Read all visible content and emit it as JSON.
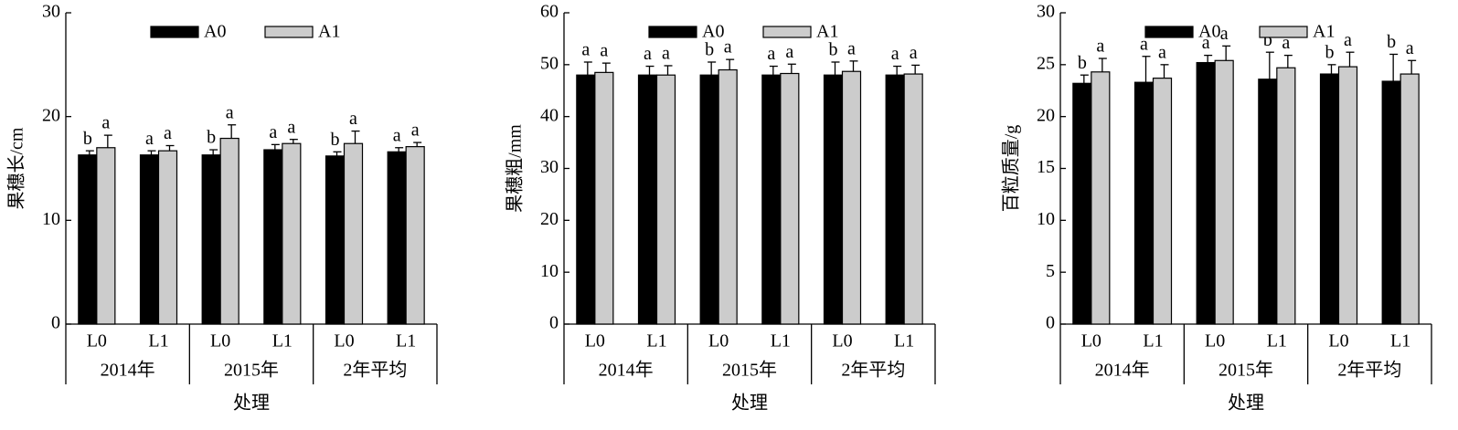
{
  "chart_data": [
    {
      "type": "bar",
      "ylabel": "果穗长/cm",
      "xlabel": "处理",
      "categories": [
        "L0",
        "L1",
        "L0",
        "L1",
        "L0",
        "L1"
      ],
      "groups": [
        "2014年",
        "2015年",
        "2年平均"
      ],
      "ylim": [
        0,
        30
      ],
      "yticks": [
        0,
        10,
        20,
        30
      ],
      "legend": "upper center",
      "series": [
        {
          "name": "A0",
          "color": "#000000",
          "values": [
            16.3,
            16.3,
            16.3,
            16.8,
            16.2,
            16.6
          ],
          "errors": [
            0.4,
            0.4,
            0.5,
            0.5,
            0.4,
            0.4
          ],
          "letters": [
            "b",
            "a",
            "b",
            "a",
            "b",
            "a"
          ]
        },
        {
          "name": "A1",
          "color": "#cccccc",
          "values": [
            17.0,
            16.7,
            17.9,
            17.4,
            17.4,
            17.1
          ],
          "errors": [
            1.2,
            0.5,
            1.3,
            0.4,
            1.2,
            0.4
          ],
          "letters": [
            "a",
            "a",
            "a",
            "a",
            "a",
            "a"
          ]
        }
      ]
    },
    {
      "type": "bar",
      "ylabel": "果穗粗/mm",
      "xlabel": "处理",
      "categories": [
        "L0",
        "L1",
        "L0",
        "L1",
        "L0",
        "L1"
      ],
      "groups": [
        "2014年",
        "2015年",
        "2年平均"
      ],
      "ylim": [
        0,
        60
      ],
      "yticks": [
        0,
        10,
        20,
        30,
        40,
        50,
        60
      ],
      "legend": "upper center",
      "series": [
        {
          "name": "A0",
          "color": "#000000",
          "values": [
            48,
            48,
            48,
            48,
            48,
            48
          ],
          "errors": [
            2.5,
            1.7,
            2.5,
            1.7,
            2.5,
            1.7
          ],
          "letters": [
            "a",
            "a",
            "b",
            "a",
            "b",
            "a"
          ]
        },
        {
          "name": "A1",
          "color": "#cccccc",
          "values": [
            48.5,
            48,
            49,
            48.3,
            48.7,
            48.2
          ],
          "errors": [
            1.8,
            1.8,
            2,
            1.8,
            2,
            1.7
          ],
          "letters": [
            "a",
            "a",
            "a",
            "a",
            "a",
            "a"
          ]
        }
      ]
    },
    {
      "type": "bar",
      "ylabel": "百粒质量/g",
      "xlabel": "处理",
      "categories": [
        "L0",
        "L1",
        "L0",
        "L1",
        "L0",
        "L1"
      ],
      "groups": [
        "2014年",
        "2015年",
        "2年平均"
      ],
      "ylim": [
        0,
        30
      ],
      "yticks": [
        0,
        5,
        10,
        15,
        20,
        25,
        30
      ],
      "legend": "upper center",
      "series": [
        {
          "name": "A0",
          "color": "#000000",
          "values": [
            23.2,
            23.3,
            25.2,
            23.6,
            24.1,
            23.4
          ],
          "errors": [
            0.8,
            2.5,
            0.7,
            2.6,
            0.9,
            2.6
          ],
          "letters": [
            "b",
            "a",
            "a",
            "b",
            "b",
            "b"
          ]
        },
        {
          "name": "A1",
          "color": "#cccccc",
          "values": [
            24.3,
            23.7,
            25.4,
            24.7,
            24.8,
            24.1
          ],
          "errors": [
            1.3,
            1.3,
            1.4,
            1.2,
            1.4,
            1.3
          ],
          "letters": [
            "a",
            "a",
            "a",
            "a",
            "a",
            "a"
          ]
        }
      ]
    }
  ]
}
